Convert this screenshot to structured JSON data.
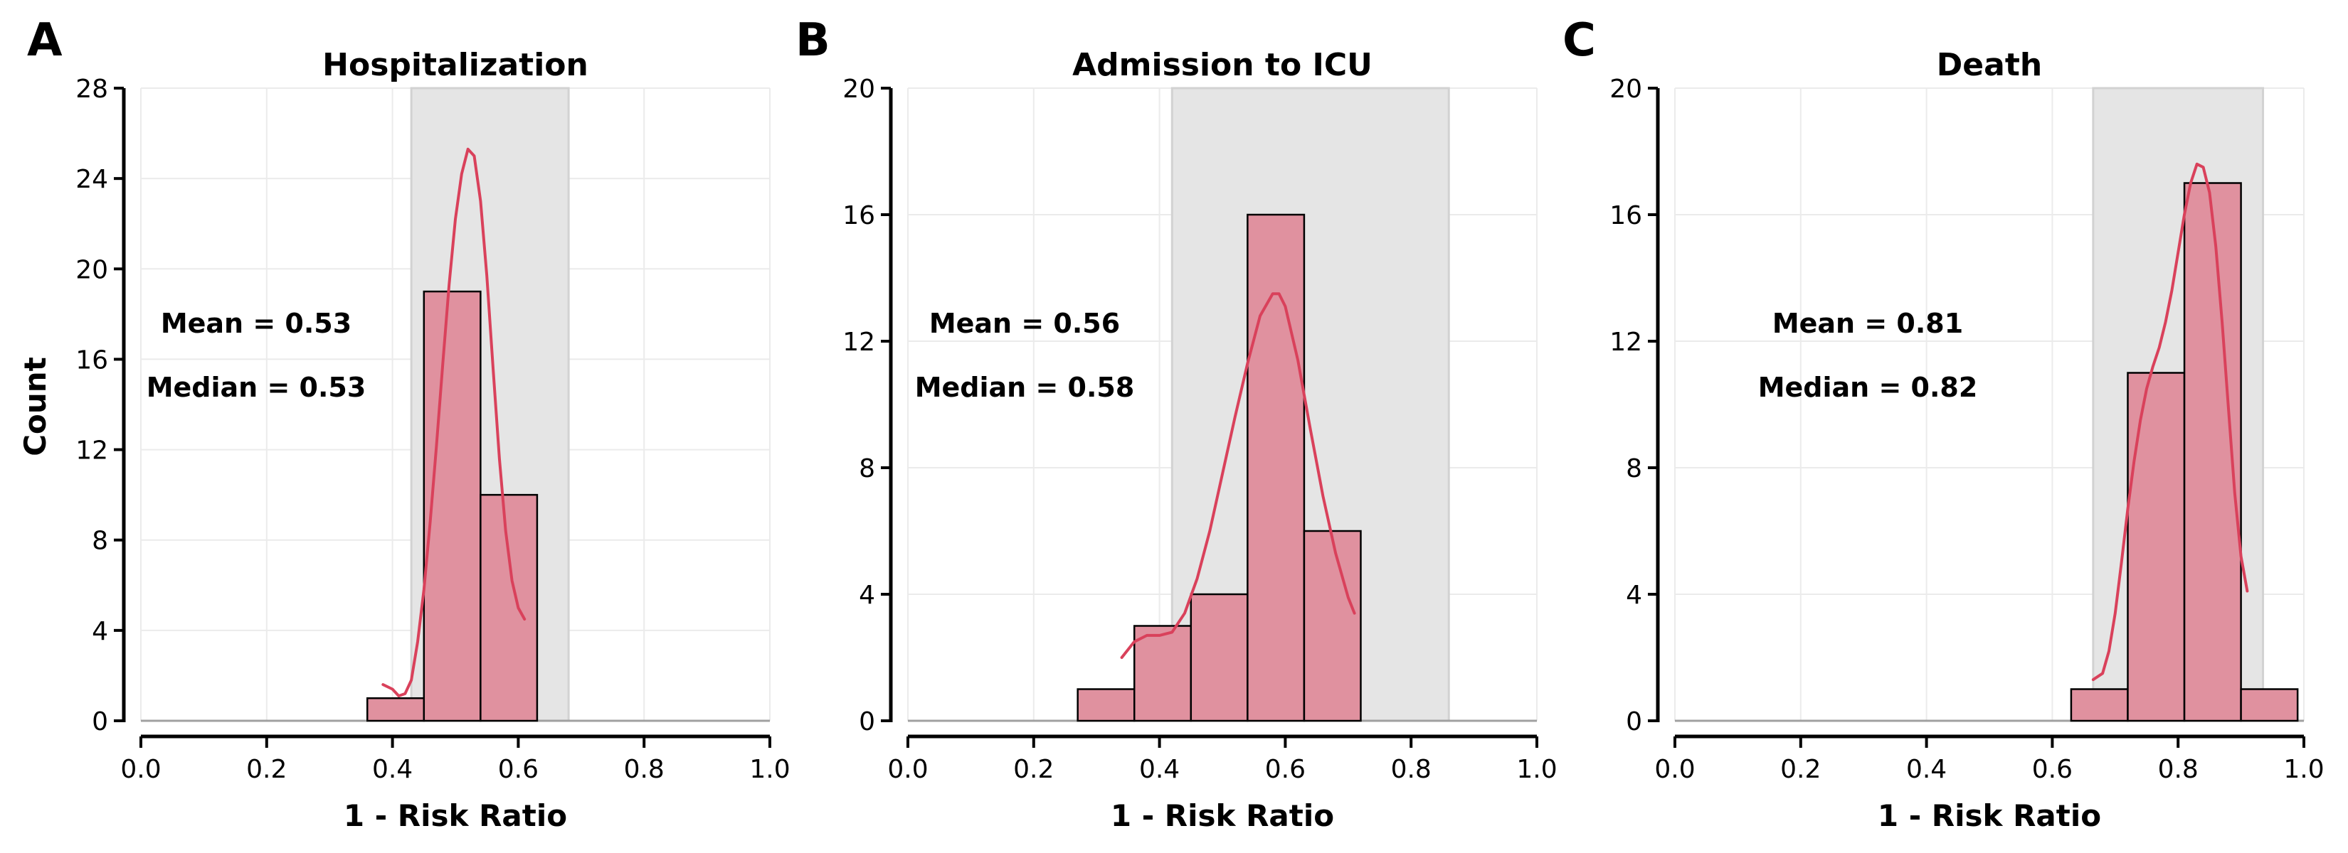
{
  "figure": {
    "ylabel": "Count",
    "xlabel": "1 - Risk Ratio"
  },
  "colors": {
    "bar_fill": "#e0919f",
    "bar_outline_fill": "#ee9aa8",
    "kde_line": "#d9415b",
    "ci_band": "#e5e5e5",
    "grid": "#ebebeb"
  },
  "chart_data": [
    {
      "type": "bar",
      "panel_label": "A",
      "title": "Hospitalization",
      "xlabel": "1 - Risk Ratio",
      "ylabel": "Count",
      "xlim": [
        0,
        1
      ],
      "ylim": [
        0,
        28
      ],
      "xticks": [
        "0.0",
        "0.2",
        "0.4",
        "0.6",
        "0.8",
        "1.0"
      ],
      "yticks": [
        "0",
        "4",
        "8",
        "12",
        "16",
        "20",
        "24",
        "28"
      ],
      "bins": [
        {
          "x0": 0.36,
          "x1": 0.45,
          "count": 1
        },
        {
          "x0": 0.45,
          "x1": 0.54,
          "count": 19
        },
        {
          "x0": 0.54,
          "x1": 0.63,
          "count": 10
        }
      ],
      "ci_band": [
        0.43,
        0.68
      ],
      "kde": {
        "x": [
          0.385,
          0.4,
          0.41,
          0.42,
          0.43,
          0.44,
          0.45,
          0.46,
          0.47,
          0.48,
          0.49,
          0.5,
          0.51,
          0.52,
          0.53,
          0.54,
          0.55,
          0.56,
          0.57,
          0.58,
          0.59,
          0.6,
          0.61
        ],
        "y": [
          1.6,
          1.4,
          1.1,
          1.2,
          1.8,
          3.5,
          5.8,
          8.8,
          12.2,
          15.8,
          19.3,
          22.2,
          24.2,
          25.3,
          25.0,
          23.0,
          19.7,
          15.6,
          11.6,
          8.4,
          6.2,
          5.0,
          4.5
        ]
      },
      "stats": {
        "mean": "Mean = 0.53",
        "median": "Median = 0.53"
      }
    },
    {
      "type": "bar",
      "panel_label": "B",
      "title": "Admission to ICU",
      "xlabel": "1 - Risk Ratio",
      "ylabel": "",
      "xlim": [
        0,
        1
      ],
      "ylim": [
        0,
        20
      ],
      "xticks": [
        "0.0",
        "0.2",
        "0.4",
        "0.6",
        "0.8",
        "1.0"
      ],
      "yticks": [
        "0",
        "4",
        "8",
        "12",
        "16",
        "20"
      ],
      "bins": [
        {
          "x0": 0.27,
          "x1": 0.36,
          "count": 1
        },
        {
          "x0": 0.36,
          "x1": 0.45,
          "count": 3
        },
        {
          "x0": 0.45,
          "x1": 0.54,
          "count": 4
        },
        {
          "x0": 0.54,
          "x1": 0.63,
          "count": 16
        },
        {
          "x0": 0.63,
          "x1": 0.72,
          "count": 6
        }
      ],
      "ci_band": [
        0.42,
        0.86
      ],
      "kde": {
        "x": [
          0.34,
          0.36,
          0.38,
          0.4,
          0.42,
          0.44,
          0.46,
          0.48,
          0.5,
          0.52,
          0.54,
          0.56,
          0.58,
          0.59,
          0.6,
          0.62,
          0.64,
          0.66,
          0.68,
          0.7,
          0.71
        ],
        "y": [
          2.0,
          2.5,
          2.7,
          2.7,
          2.8,
          3.4,
          4.5,
          6.0,
          7.8,
          9.6,
          11.3,
          12.8,
          13.5,
          13.5,
          13.1,
          11.4,
          9.2,
          7.1,
          5.3,
          3.9,
          3.4
        ]
      },
      "stats": {
        "mean": "Mean = 0.56",
        "median": "Median = 0.58"
      }
    },
    {
      "type": "bar",
      "panel_label": "C",
      "title": "Death",
      "xlabel": "1 - Risk Ratio",
      "ylabel": "",
      "xlim": [
        0,
        1
      ],
      "ylim": [
        0,
        20
      ],
      "xticks": [
        "0.0",
        "0.2",
        "0.4",
        "0.6",
        "0.8",
        "1.0"
      ],
      "yticks": [
        "0",
        "4",
        "8",
        "12",
        "16",
        "20"
      ],
      "bins": [
        {
          "x0": 0.63,
          "x1": 0.72,
          "count": 1
        },
        {
          "x0": 0.72,
          "x1": 0.81,
          "count": 11
        },
        {
          "x0": 0.81,
          "x1": 0.9,
          "count": 17
        },
        {
          "x0": 0.9,
          "x1": 0.99,
          "count": 1
        }
      ],
      "ci_band": [
        0.665,
        0.935
      ],
      "kde": {
        "x": [
          0.665,
          0.68,
          0.69,
          0.7,
          0.71,
          0.72,
          0.73,
          0.74,
          0.75,
          0.76,
          0.77,
          0.78,
          0.79,
          0.8,
          0.81,
          0.82,
          0.83,
          0.84,
          0.85,
          0.86,
          0.87,
          0.88,
          0.89,
          0.9,
          0.91
        ],
        "y": [
          1.3,
          1.5,
          2.2,
          3.4,
          5.0,
          6.7,
          8.2,
          9.5,
          10.5,
          11.2,
          11.8,
          12.6,
          13.6,
          14.8,
          16.0,
          17.0,
          17.6,
          17.5,
          16.7,
          15.0,
          12.6,
          9.9,
          7.2,
          5.2,
          4.1
        ]
      },
      "stats": {
        "mean": "Mean = 0.81",
        "median": "Median = 0.82"
      }
    }
  ]
}
